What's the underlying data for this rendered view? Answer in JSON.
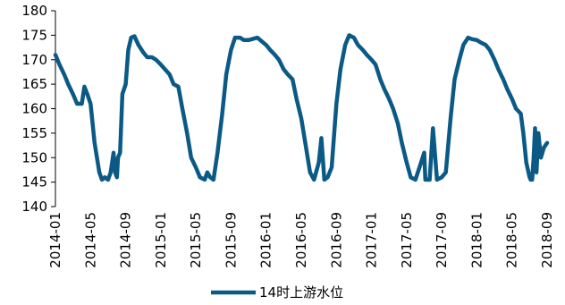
{
  "chart_data": {
    "type": "line",
    "title": "",
    "xlabel": "",
    "ylabel": "",
    "ylim": [
      140,
      180
    ],
    "xlim": [
      "2014-01",
      "2018-09"
    ],
    "yticks": [
      "140",
      "145",
      "150",
      "155",
      "160",
      "165",
      "170",
      "175",
      "180"
    ],
    "xticks": [
      "2014-01",
      "2014-05",
      "2014-09",
      "2015-01",
      "2015-05",
      "2015-09",
      "2016-01",
      "2016-05",
      "2016-09",
      "2017-01",
      "2017-05",
      "2017-09",
      "2018-01",
      "2018-05",
      "2018-09"
    ],
    "grid": false,
    "legend_position": "bottom-center",
    "series": [
      {
        "name": "14时上游水位",
        "color": "#0b5a86",
        "x": [
          "2014-01-01",
          "2014-01-15",
          "2014-02-01",
          "2014-02-15",
          "2014-03-01",
          "2014-03-15",
          "2014-04-01",
          "2014-04-10",
          "2014-04-20",
          "2014-05-01",
          "2014-05-15",
          "2014-06-01",
          "2014-06-10",
          "2014-06-20",
          "2014-07-01",
          "2014-07-10",
          "2014-07-20",
          "2014-07-25",
          "2014-08-01",
          "2014-08-05",
          "2014-08-12",
          "2014-08-20",
          "2014-09-01",
          "2014-09-10",
          "2014-09-20",
          "2014-10-01",
          "2014-10-15",
          "2014-11-01",
          "2014-11-15",
          "2014-12-01",
          "2014-12-15",
          "2015-01-01",
          "2015-02-01",
          "2015-02-15",
          "2015-03-01",
          "2015-03-15",
          "2015-04-01",
          "2015-04-15",
          "2015-05-01",
          "2015-05-15",
          "2015-06-01",
          "2015-06-10",
          "2015-06-20",
          "2015-07-01",
          "2015-07-15",
          "2015-08-01",
          "2015-08-15",
          "2015-09-01",
          "2015-09-15",
          "2015-10-01",
          "2015-10-15",
          "2015-11-01",
          "2015-12-01",
          "2016-01-01",
          "2016-01-15",
          "2016-02-01",
          "2016-02-15",
          "2016-03-01",
          "2016-03-15",
          "2016-04-01",
          "2016-04-15",
          "2016-05-01",
          "2016-05-15",
          "2016-06-01",
          "2016-06-15",
          "2016-07-01",
          "2016-07-10",
          "2016-07-20",
          "2016-08-01",
          "2016-08-15",
          "2016-09-01",
          "2016-09-15",
          "2016-10-01",
          "2016-10-15",
          "2016-11-01",
          "2016-11-15",
          "2016-12-01",
          "2016-12-15",
          "2017-01-01",
          "2017-01-15",
          "2017-02-01",
          "2017-02-15",
          "2017-03-01",
          "2017-03-15",
          "2017-04-01",
          "2017-04-15",
          "2017-05-01",
          "2017-05-15",
          "2017-06-01",
          "2017-06-15",
          "2017-07-01",
          "2017-07-05",
          "2017-07-10",
          "2017-07-20",
          "2017-08-01",
          "2017-08-15",
          "2017-09-01",
          "2017-09-15",
          "2017-10-01",
          "2017-10-15",
          "2017-11-01",
          "2017-11-15",
          "2017-12-01",
          "2017-12-15",
          "2018-01-01",
          "2018-01-15",
          "2018-02-01",
          "2018-02-15",
          "2018-03-01",
          "2018-03-15",
          "2018-04-01",
          "2018-04-15",
          "2018-05-01",
          "2018-05-15",
          "2018-06-01",
          "2018-06-10",
          "2018-06-20",
          "2018-07-01",
          "2018-07-05",
          "2018-07-10",
          "2018-07-15",
          "2018-07-20",
          "2018-07-25",
          "2018-08-01",
          "2018-08-10",
          "2018-08-20",
          "2018-09-01"
        ],
        "values": [
          171,
          169,
          167,
          165,
          163,
          161,
          161,
          164.5,
          163,
          161,
          153,
          147,
          145.5,
          146,
          145.5,
          147,
          151,
          147,
          146,
          150,
          151,
          163,
          165,
          172,
          174.5,
          174.8,
          173,
          171.5,
          170.5,
          170.5,
          170,
          169,
          167,
          165,
          164.5,
          160,
          155,
          150,
          148,
          146,
          145.5,
          147,
          146,
          145.5,
          151,
          159,
          167,
          172,
          174.5,
          174.5,
          174,
          174,
          174.5,
          173,
          172,
          171,
          170,
          168,
          167,
          166,
          162,
          158,
          153,
          147,
          145.5,
          149,
          154,
          145.5,
          146,
          148,
          161,
          168,
          173,
          175,
          174.5,
          173,
          172,
          171,
          170,
          169,
          166,
          164,
          162,
          160,
          157,
          153,
          149,
          146,
          145.5,
          148,
          151,
          145.5,
          145.5,
          145.5,
          156,
          145.5,
          146,
          147,
          158,
          166,
          170,
          173,
          174.5,
          174.2,
          174,
          173.5,
          173,
          172,
          170,
          168,
          166,
          164,
          162,
          160,
          159,
          155,
          149,
          146,
          145.5,
          145.5,
          150,
          156,
          147,
          155,
          150,
          152,
          153
        ]
      }
    ]
  }
}
